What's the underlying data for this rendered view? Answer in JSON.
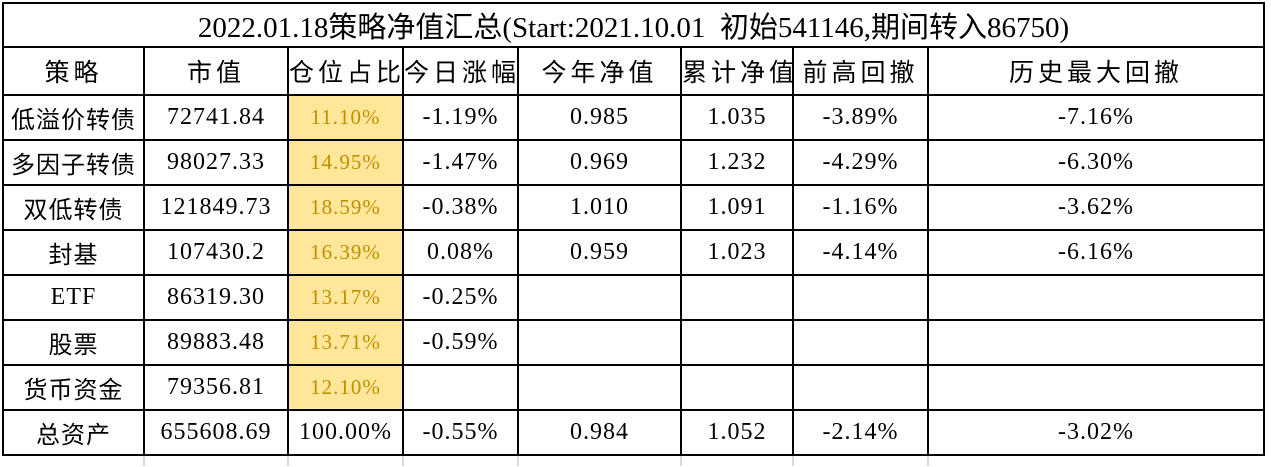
{
  "title": "2022.01.18策略净值汇总(Start:2021.10.01  初始541146,期间转入86750)",
  "table": {
    "headers": [
      "策略",
      "市值",
      "仓位占比",
      "今日涨幅",
      "今年净值",
      "累计净值",
      "前高回撤",
      "历史最大回撤"
    ],
    "field_order": [
      "strategy",
      "market_value",
      "position_pct",
      "today_change",
      "ytd_nav",
      "cumulative_nav",
      "drawdown_from_prev_high",
      "historical_max_drawdown"
    ],
    "rows": [
      {
        "strategy": "低溢价转债",
        "market_value": "72741.84",
        "position_pct": "11.10%",
        "today_change": "-1.19%",
        "ytd_nav": "0.985",
        "cumulative_nav": "1.035",
        "drawdown_from_prev_high": "-3.89%",
        "historical_max_drawdown": "-7.16%",
        "position_highlighted": true
      },
      {
        "strategy": "多因子转债",
        "market_value": "98027.33",
        "position_pct": "14.95%",
        "today_change": "-1.47%",
        "ytd_nav": "0.969",
        "cumulative_nav": "1.232",
        "drawdown_from_prev_high": "-4.29%",
        "historical_max_drawdown": "-6.30%",
        "position_highlighted": true
      },
      {
        "strategy": "双低转债",
        "market_value": "121849.73",
        "position_pct": "18.59%",
        "today_change": "-0.38%",
        "ytd_nav": "1.010",
        "cumulative_nav": "1.091",
        "drawdown_from_prev_high": "-1.16%",
        "historical_max_drawdown": "-3.62%",
        "position_highlighted": true
      },
      {
        "strategy": "封基",
        "market_value": "107430.2",
        "position_pct": "16.39%",
        "today_change": "0.08%",
        "ytd_nav": "0.959",
        "cumulative_nav": "1.023",
        "drawdown_from_prev_high": "-4.14%",
        "historical_max_drawdown": "-6.16%",
        "position_highlighted": true
      },
      {
        "strategy": "ETF",
        "market_value": "86319.30",
        "position_pct": "13.17%",
        "today_change": "-0.25%",
        "ytd_nav": "",
        "cumulative_nav": "",
        "drawdown_from_prev_high": "",
        "historical_max_drawdown": "",
        "position_highlighted": true
      },
      {
        "strategy": "股票",
        "market_value": "89883.48",
        "position_pct": "13.71%",
        "today_change": "-0.59%",
        "ytd_nav": "",
        "cumulative_nav": "",
        "drawdown_from_prev_high": "",
        "historical_max_drawdown": "",
        "position_highlighted": true
      },
      {
        "strategy": "货币资金",
        "market_value": "79356.81",
        "position_pct": "12.10%",
        "today_change": "",
        "ytd_nav": "",
        "cumulative_nav": "",
        "drawdown_from_prev_high": "",
        "historical_max_drawdown": "",
        "position_highlighted": true
      },
      {
        "strategy": "总资产",
        "market_value": "655608.69",
        "position_pct": "100.00%",
        "today_change": "-0.55%",
        "ytd_nav": "0.984",
        "cumulative_nav": "1.052",
        "drawdown_from_prev_high": "-2.14%",
        "historical_max_drawdown": "-3.02%",
        "position_highlighted": false
      }
    ]
  },
  "colors": {
    "highlight_bg": "#FFE699",
    "highlight_text": "#BF8F00",
    "border": "#000000",
    "gridline_stub": "#D9D9D9"
  }
}
